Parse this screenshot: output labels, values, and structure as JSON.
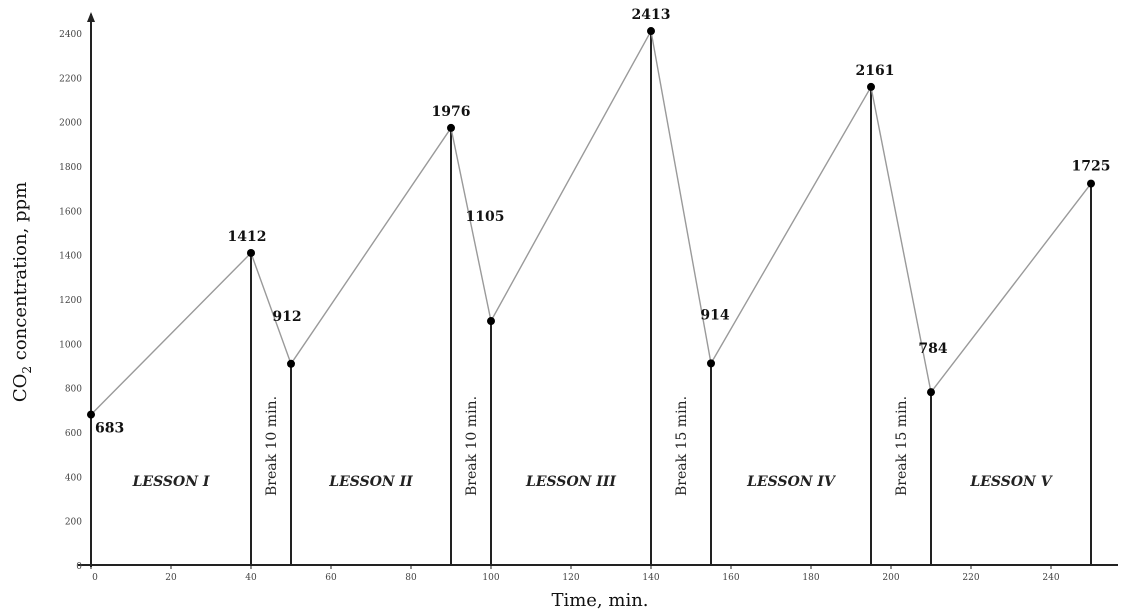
{
  "chart_data": {
    "type": "line",
    "xlabel": "Time, min.",
    "ylabel_main": "CO",
    "ylabel_sub": "2",
    "ylabel_rest": " concentration, ppm",
    "xlim": [
      0,
      255
    ],
    "ylim": [
      0,
      2600
    ],
    "x_ticks": [
      0,
      20,
      40,
      60,
      80,
      100,
      120,
      140,
      160,
      180,
      200,
      220,
      240
    ],
    "y_ticks": [
      0,
      200,
      400,
      600,
      800,
      1000,
      1200,
      1400,
      1600,
      1800,
      2000,
      2200,
      2400
    ],
    "grid": false,
    "series": [
      {
        "x": [
          0,
          40,
          50,
          90,
          100,
          140,
          155,
          195,
          210,
          250
        ],
        "values": [
          683,
          1412,
          912,
          1976,
          1105,
          2413,
          914,
          2161,
          784,
          1725
        ]
      }
    ],
    "point_labels": [
      "683",
      "1412",
      "912",
      "1976",
      "1105",
      "2413",
      "914",
      "2161",
      "784",
      "1725"
    ],
    "vertical_lines_at": [
      40,
      50,
      90,
      100,
      140,
      155,
      195,
      210,
      250
    ],
    "lessons": [
      {
        "label": "LESSON I",
        "x": 20
      },
      {
        "label": "LESSON II",
        "x": 70
      },
      {
        "label": "LESSON III",
        "x": 120
      },
      {
        "label": "LESSON IV",
        "x": 175
      },
      {
        "label": "LESSON V",
        "x": 230
      }
    ],
    "breaks": [
      {
        "label": "Break 10 min.",
        "x": 45
      },
      {
        "label": "Break 10 min.",
        "x": 95
      },
      {
        "label": "Break 15 min.",
        "x": 147.5
      },
      {
        "label": "Break 15 min.",
        "x": 202.5
      }
    ],
    "colors": {
      "line": "#9a9a9a",
      "point": "#000000",
      "vertical": "#222222",
      "axis": "#222222"
    }
  }
}
